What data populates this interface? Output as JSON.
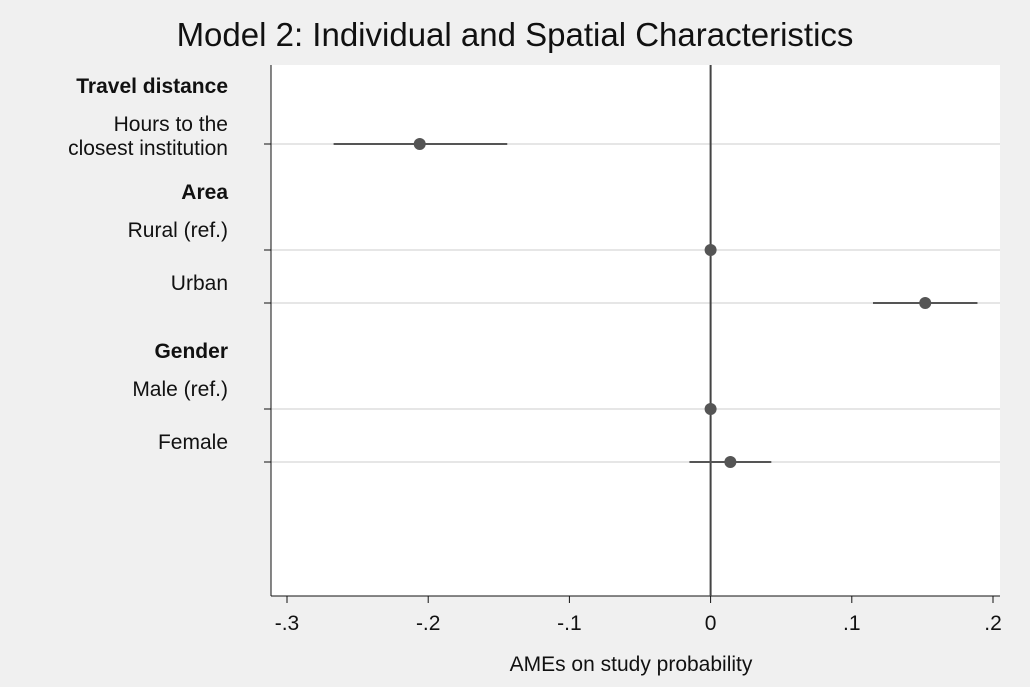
{
  "chart_data": {
    "type": "scatter",
    "subtype": "coefficient-plot",
    "title": "Model 2: Individual and Spatial Characteristics",
    "xlabel": "AMEs on study probability",
    "ylabel": "",
    "xlim": [
      -0.3,
      0.2
    ],
    "x_ticks": [
      {
        "value": -0.3,
        "label": "-.3"
      },
      {
        "value": -0.2,
        "label": "-.2"
      },
      {
        "value": -0.1,
        "label": "-.1"
      },
      {
        "value": 0,
        "label": "0"
      },
      {
        "value": 0.1,
        "label": ".1"
      },
      {
        "value": 0.2,
        "label": ".2"
      }
    ],
    "reference_line": 0,
    "grid": true,
    "groups": [
      {
        "heading": "Travel distance",
        "items": [
          {
            "label_lines": [
              "Hours to the",
              "closest institution"
            ],
            "estimate": -0.206,
            "ci": [
              -0.267,
              -0.144
            ]
          }
        ]
      },
      {
        "heading": "Area",
        "items": [
          {
            "label_lines": [
              "Rural (ref.)"
            ],
            "estimate": 0,
            "ci": null
          },
          {
            "label_lines": [
              "Urban"
            ],
            "estimate": 0.152,
            "ci": [
              0.115,
              0.189
            ]
          }
        ]
      },
      {
        "heading": "Gender",
        "items": [
          {
            "label_lines": [
              "Male (ref.)"
            ],
            "estimate": 0,
            "ci": null
          },
          {
            "label_lines": [
              "Female"
            ],
            "estimate": 0.014,
            "ci": [
              -0.015,
              0.043
            ]
          }
        ]
      }
    ],
    "colors": {
      "background": "#f0f0f0",
      "plot_background": "#ffffff",
      "marker": "#555555",
      "ci_line": "#555555",
      "reference_line": "#444444",
      "grid": "#e6e6e6",
      "text": "#111111"
    }
  }
}
